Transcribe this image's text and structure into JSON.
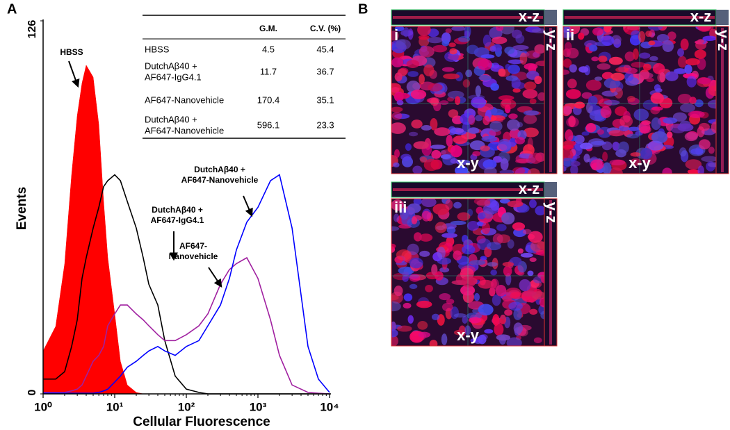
{
  "panel_a": {
    "label": "A"
  },
  "panel_b": {
    "label": "B",
    "images": [
      {
        "label": "i",
        "xz": "x-z",
        "yz": "y-z",
        "xy": "x-y"
      },
      {
        "label": "ii",
        "xz": "x-z",
        "yz": "y-z",
        "xy": "x-y"
      },
      {
        "label": "iii",
        "xz": "x-z",
        "yz": "y-z",
        "xy": "x-y"
      }
    ]
  },
  "table": {
    "header": [
      "G.M.",
      "C.V. (%)"
    ],
    "rows": [
      {
        "name": [
          "HBSS"
        ],
        "gm": 4.5,
        "cv": 45.4
      },
      {
        "name": [
          "DutchAβ40 +",
          "AF647-IgG4.1"
        ],
        "gm": 11.7,
        "cv": 36.7
      },
      {
        "name": [
          "AF647-Nanovehicle"
        ],
        "gm": 170.4,
        "cv": 35.1
      },
      {
        "name": [
          "DutchAβ40 +",
          "AF647-Nanovehicle"
        ],
        "gm": 596.1,
        "cv": 23.3
      }
    ]
  },
  "chart_data": {
    "type": "line",
    "xlabel": "Cellular Fluorescence",
    "ylabel": "Events",
    "xscale": "log",
    "xlim": [
      1,
      10000
    ],
    "ylim": [
      0,
      126
    ],
    "xticks": [
      {
        "value": 1,
        "label": "10⁰"
      },
      {
        "value": 10,
        "label": "10¹"
      },
      {
        "value": 100,
        "label": "10²"
      },
      {
        "value": 1000,
        "label": "10³"
      },
      {
        "value": 10000,
        "label": "10⁴"
      }
    ],
    "yticks": [
      0,
      126
    ],
    "x": [
      1,
      1.5,
      2,
      2.5,
      3,
      3.5,
      4,
      5,
      6,
      7,
      8,
      10,
      12,
      15,
      20,
      25,
      30,
      40,
      50,
      70,
      100,
      150,
      200,
      300,
      400,
      500,
      700,
      1000,
      1500,
      2000,
      3000,
      5000,
      7000,
      10000
    ],
    "series": [
      {
        "color": "#ff0000",
        "fill": true,
        "values": [
          14.5,
          22.8,
          43.9,
          74,
          94,
          105,
          111,
          107,
          91,
          65,
          46,
          27,
          11,
          3,
          0.5,
          0,
          0,
          0,
          0,
          0,
          0,
          0,
          0,
          0,
          0,
          0,
          0,
          0,
          0,
          0,
          0,
          0,
          0,
          0
        ]
      },
      {
        "color": "#000000",
        "fill": false,
        "values": [
          5,
          5,
          7.5,
          16,
          25,
          39,
          46,
          56,
          63,
          70,
          72,
          74,
          72,
          65,
          56,
          46,
          37,
          30,
          18,
          6,
          1.6,
          0.5,
          0,
          0,
          0,
          0,
          0,
          0,
          0,
          0,
          0,
          0,
          0,
          0
        ]
      },
      {
        "color": "#a020a0",
        "fill": false,
        "values": [
          0.5,
          0.5,
          0.5,
          1,
          1.6,
          3,
          6,
          11,
          13,
          16,
          23,
          27,
          30,
          30,
          27,
          25,
          23,
          20,
          18,
          18,
          20,
          23,
          27,
          37,
          42,
          44,
          46,
          39,
          25,
          13,
          3,
          0.5,
          0.2,
          0
        ]
      },
      {
        "color": "#0000ff",
        "fill": false,
        "values": [
          0.2,
          0.2,
          0.2,
          0.2,
          0.2,
          0.2,
          0.2,
          0.2,
          0.5,
          1,
          1.6,
          4,
          6,
          9,
          11,
          13,
          14.5,
          16,
          14.5,
          13,
          16,
          18,
          23,
          30,
          39,
          48.6,
          58,
          63,
          72,
          74,
          56,
          16,
          5,
          0.5
        ]
      }
    ],
    "annotations": [
      {
        "text": [
          "HBSS"
        ]
      },
      {
        "text": [
          "DutchAβ40 +",
          "AF647-Nanovehicle"
        ]
      },
      {
        "text": [
          "DutchAβ40 +",
          "AF647-IgG4.1"
        ]
      },
      {
        "text": [
          "AF647-",
          "Nanovehicle"
        ]
      }
    ]
  }
}
